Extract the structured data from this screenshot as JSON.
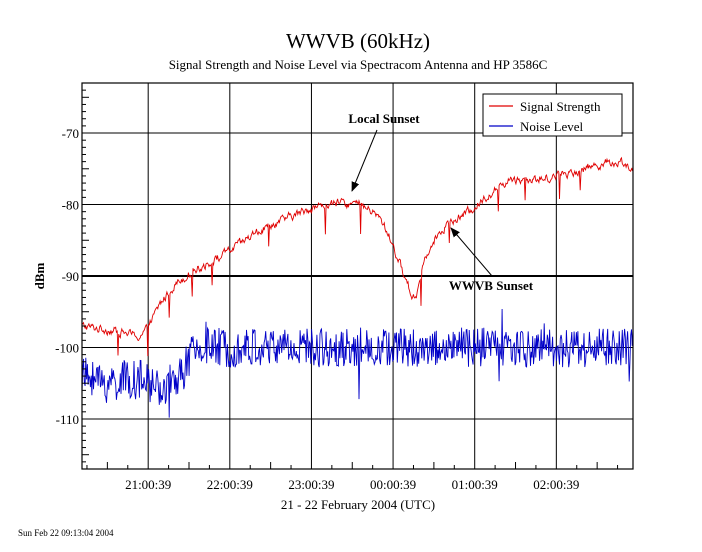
{
  "footer": {
    "timestamp": "Sun Feb 22 09:13:04 2004"
  },
  "chart_data": {
    "type": "line",
    "title": "WWVB (60kHz)",
    "subtitle": "Signal Strength and Noise Level via Spectracom Antenna and HP 3586C",
    "xlabel": "21 - 22 February 2004  (UTC)",
    "ylabel": "dBm",
    "xlim_hours_utc": [
      20.2,
      26.95
    ],
    "ylim": [
      -117,
      -63
    ],
    "grid": true,
    "legend_position": "top-right",
    "y_ticks": [
      -70,
      -80,
      -90,
      -100,
      -110
    ],
    "y_tick_labels": [
      "-70",
      "-80",
      "-90",
      "-100",
      "-110"
    ],
    "x_ticks_hours_utc": [
      21.0108,
      22.0108,
      23.0108,
      24.0108,
      25.0108,
      26.0108
    ],
    "x_tick_labels": [
      "21:00:39",
      "22:00:39",
      "23:00:39",
      "00:00:39",
      "01:00:39",
      "02:00:39"
    ],
    "reference_line_y": -90,
    "annotations": [
      {
        "text": "Local Sunset",
        "x": 23.45,
        "y": -79.5
      },
      {
        "text": "WWVB Sunset",
        "x": 24.65,
        "y": -83.5
      }
    ],
    "series": [
      {
        "name": "Signal Strength",
        "color": "#e00000",
        "x_hours_utc": [
          20.2,
          20.5,
          20.75,
          20.9,
          21.0,
          21.15,
          21.35,
          21.6,
          21.8,
          22.0,
          22.2,
          22.4,
          22.6,
          22.8,
          23.0,
          23.2,
          23.4,
          23.6,
          23.75,
          23.85,
          23.95,
          24.05,
          24.15,
          24.25,
          24.3,
          24.38,
          24.5,
          24.65,
          24.8,
          25.0,
          25.15,
          25.3,
          25.45,
          25.6,
          25.8,
          26.0,
          26.2,
          26.4,
          26.6,
          26.8,
          26.95
        ],
        "values": [
          -97,
          -97.5,
          -98,
          -98.5,
          -97.5,
          -94,
          -91,
          -89,
          -88,
          -86.5,
          -85,
          -83.5,
          -82.5,
          -81.5,
          -80.5,
          -80,
          -79.8,
          -80,
          -81,
          -82,
          -84,
          -87,
          -90,
          -93,
          -92.5,
          -88,
          -85,
          -83,
          -82,
          -80.5,
          -79,
          -77.5,
          -76.5,
          -76.5,
          -76.5,
          -76,
          -75.5,
          -74.8,
          -74.2,
          -74,
          -75
        ]
      },
      {
        "name": "Noise Level",
        "color": "#0000c8",
        "x_hours_utc": [
          20.2,
          20.5,
          20.75,
          20.9,
          21.0,
          21.2,
          21.4,
          21.55,
          21.7,
          22.0,
          22.3,
          22.6,
          23.0,
          23.5,
          24.0,
          24.5,
          25.0,
          25.5,
          26.0,
          26.5,
          26.95
        ],
        "values": [
          -104,
          -105,
          -104.5,
          -104.5,
          -105,
          -105.5,
          -104,
          -101,
          -100,
          -100,
          -100,
          -100,
          -100,
          -100,
          -100,
          -100,
          -100,
          -100,
          -100,
          -100,
          -100
        ]
      }
    ]
  }
}
